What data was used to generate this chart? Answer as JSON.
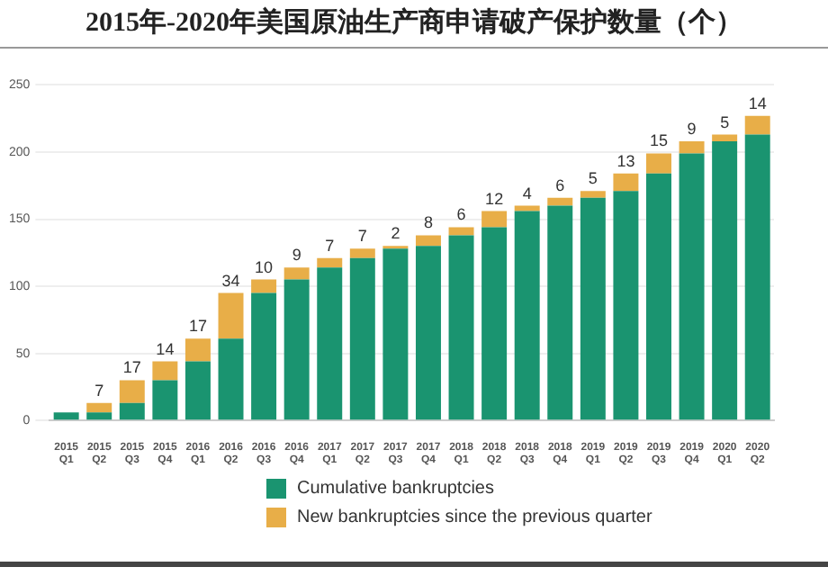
{
  "chart_data": {
    "type": "bar",
    "title": "2015年-2020年美国原油生产商申请破产保护数量（个）",
    "categories": [
      "2015 Q1",
      "2015 Q2",
      "2015 Q3",
      "2015 Q4",
      "2016 Q1",
      "2016 Q2",
      "2016 Q3",
      "2016 Q4",
      "2017 Q1",
      "2017 Q2",
      "2017 Q3",
      "2017 Q4",
      "2018 Q1",
      "2018 Q2",
      "2018 Q3",
      "2018 Q4",
      "2019 Q1",
      "2019 Q2",
      "2019 Q3",
      "2019 Q4",
      "2020 Q1",
      "2020 Q2"
    ],
    "stacked": true,
    "series": [
      {
        "name": "Cumulative bankruptcies",
        "color": "#1a9470",
        "values": [
          6,
          6,
          13,
          30,
          44,
          61,
          95,
          105,
          114,
          121,
          128,
          130,
          138,
          144,
          156,
          160,
          166,
          171,
          184,
          199,
          208,
          213
        ]
      },
      {
        "name": "New bankruptcies since the previous quarter",
        "color": "#e8ae48",
        "values": [
          null,
          7,
          17,
          14,
          17,
          34,
          10,
          9,
          7,
          7,
          2,
          8,
          6,
          12,
          4,
          6,
          5,
          13,
          15,
          9,
          5,
          14
        ],
        "value_labels": [
          null,
          "7",
          "17",
          "14",
          "17",
          "34",
          "10",
          "9",
          "7",
          "7",
          "2",
          "8",
          "6",
          "12",
          "4",
          "6",
          "5",
          "13",
          "15",
          "9",
          "5",
          "14"
        ]
      }
    ],
    "ylim": [
      0,
      250
    ],
    "yticks": [
      0,
      50,
      100,
      150,
      200,
      250
    ],
    "grid": "y",
    "legend": "bottom"
  }
}
